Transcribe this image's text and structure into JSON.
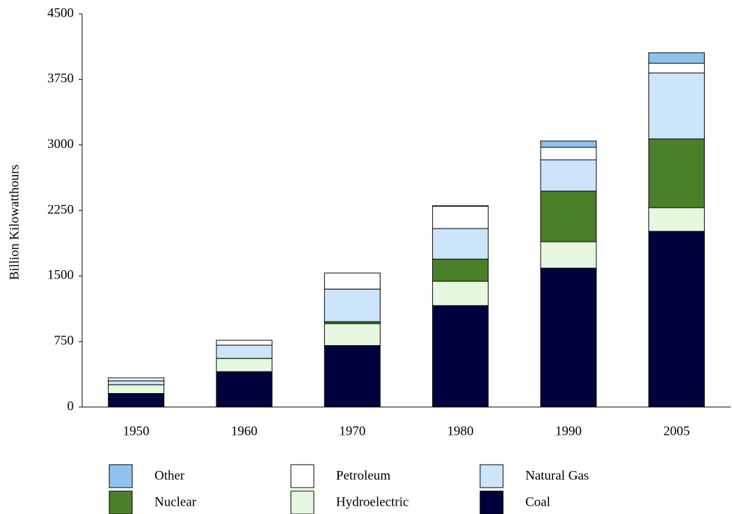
{
  "chart_data": {
    "type": "stacked_bar",
    "y_label": "Billion Kilowatthours",
    "categories": [
      "1950",
      "1960",
      "1970",
      "1980",
      "1990",
      "2005"
    ],
    "series": [
      {
        "name": "Other",
        "color": "#8fc3ee",
        "values": [
          0,
          0,
          0,
          6,
          72,
          120
        ]
      },
      {
        "name": "Petroleum",
        "color": "#ffffff",
        "values": [
          34,
          56,
          184,
          255,
          143,
          111
        ]
      },
      {
        "name": "Natural Gas",
        "color": "#cce5fb",
        "values": [
          45,
          151,
          373,
          350,
          358,
          755
        ]
      },
      {
        "name": "Nuclear",
        "color": "#4b7f2a",
        "values": [
          0,
          1,
          22,
          254,
          580,
          787
        ]
      },
      {
        "name": "Hydroelectric",
        "color": "#e6f9e0",
        "values": [
          100,
          151,
          251,
          278,
          302,
          271
        ]
      },
      {
        "name": "Coal",
        "color": "#00003c",
        "values": [
          155,
          405,
          704,
          1161,
          1590,
          2011
        ]
      }
    ],
    "ylim": [
      0,
      4500
    ],
    "yticks": [
      0,
      750,
      1500,
      2250,
      3000,
      3750,
      4500
    ]
  }
}
